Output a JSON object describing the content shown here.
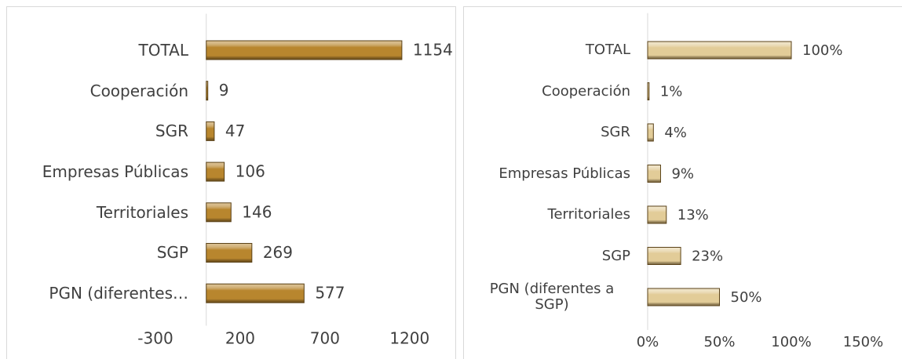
{
  "chart_data": [
    {
      "type": "barh",
      "categories": [
        "TOTAL",
        "Cooperación",
        "SGR",
        "Empresas Públicas",
        "Territoriales",
        "SGP",
        "PGN (diferentes…"
      ],
      "values": [
        1154,
        9,
        47,
        106,
        146,
        269,
        577
      ],
      "color": "#b8862e",
      "xlim": [
        -300,
        1400
      ],
      "xticks": [
        -300,
        200,
        700,
        1200
      ]
    },
    {
      "type": "barh",
      "categories": [
        "TOTAL",
        "Cooperación",
        "SGR",
        "Empresas Públicas",
        "Territoriales",
        "SGP",
        "PGN (diferentes a SGP)"
      ],
      "values": [
        100,
        1,
        4,
        9,
        13,
        23,
        50
      ],
      "value_labels": [
        "100%",
        "1%",
        "4%",
        "9%",
        "13%",
        "23%",
        "50%"
      ],
      "color": "#e2cc98",
      "xlim": [
        0,
        150
      ],
      "xticks": [
        {
          "value": 0,
          "label": "0%"
        },
        {
          "value": 50,
          "label": "50%"
        },
        {
          "value": 100,
          "label": "100%"
        },
        {
          "value": 150,
          "label": "150%"
        }
      ]
    }
  ]
}
